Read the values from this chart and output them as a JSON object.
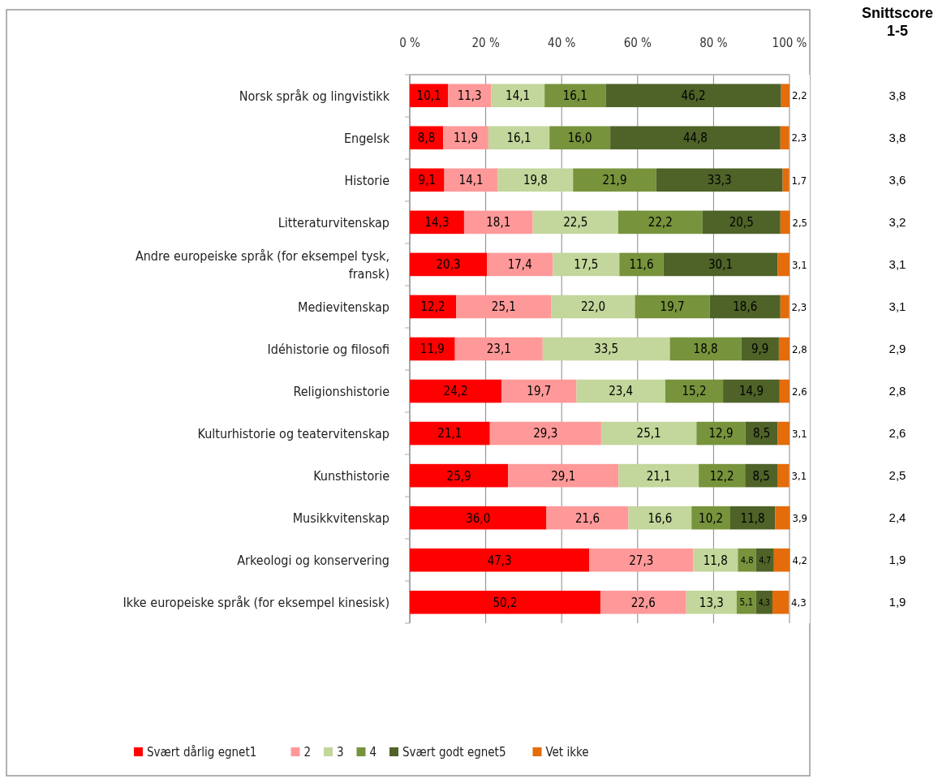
{
  "chart_data": [
    {
      "type": "bar",
      "orientation": "horizontal",
      "stacked": true,
      "grid": "x",
      "legend": "bottom",
      "categories": [
        "Norsk språk og lingvistikk",
        "Engelsk",
        "Historie",
        "Litteraturvitenskap",
        "Andre europeiske språk (for eksempel tysk, fransk)",
        "Medievitenskap",
        "Idéhistorie og filosofi",
        "Religionshistorie",
        "Kulturhistorie og teatervitenskap",
        "Kunsthistorie",
        "Musikkvitenskap",
        "Arkeologi og konservering",
        "Ikke europeiske språk (for eksempel kinesisk)"
      ],
      "xlim": [
        0,
        100
      ],
      "xticks": [
        {
          "value": 0,
          "label": "0 %"
        },
        {
          "value": 20,
          "label": "20 %"
        },
        {
          "value": 40,
          "label": "40 %"
        },
        {
          "value": 60,
          "label": "60 %"
        },
        {
          "value": 80,
          "label": "80 %"
        },
        {
          "value": 100,
          "label": "100 %"
        }
      ],
      "series": [
        {
          "name": "Svært dårlig egnet1",
          "color": "#ff0000",
          "values": [
            10.1,
            8.8,
            9.1,
            14.3,
            20.3,
            12.2,
            11.9,
            24.2,
            21.1,
            25.9,
            36.0,
            47.3,
            50.2
          ],
          "value_labels": [
            "10,1",
            "8,8",
            "9,1",
            "14,3",
            "20,3",
            "12,2",
            "11,9",
            "24,2",
            "21,1",
            "25,9",
            "36,0",
            "47,3",
            "50,2"
          ]
        },
        {
          "name": "2",
          "color": "#ff9999",
          "values": [
            11.3,
            11.9,
            14.1,
            18.1,
            17.4,
            25.1,
            23.1,
            19.7,
            29.3,
            29.1,
            21.6,
            27.3,
            22.6
          ],
          "value_labels": [
            "11,3",
            "11,9",
            "14,1",
            "18,1",
            "17,4",
            "25,1",
            "23,1",
            "19,7",
            "29,3",
            "29,1",
            "21,6",
            "27,3",
            "22,6"
          ]
        },
        {
          "name": "3",
          "color": "#c3d69b",
          "values": [
            14.1,
            16.1,
            19.8,
            22.5,
            17.5,
            22.0,
            33.5,
            23.4,
            25.1,
            21.1,
            16.6,
            11.8,
            13.3
          ],
          "value_labels": [
            "14,1",
            "16,1",
            "19,8",
            "22,5",
            "17,5",
            "22,0",
            "33,5",
            "23,4",
            "25,1",
            "21,1",
            "16,6",
            "11,8",
            "13,3"
          ]
        },
        {
          "name": "4",
          "color": "#77933c",
          "values": [
            16.1,
            16.0,
            21.9,
            22.2,
            11.6,
            19.7,
            18.8,
            15.2,
            12.9,
            12.2,
            10.2,
            4.8,
            5.1
          ],
          "value_labels": [
            "16,1",
            "16,0",
            "21,9",
            "22,2",
            "11,6",
            "19,7",
            "18,8",
            "15,2",
            "12,9",
            "12,2",
            "10,2",
            "4,8",
            "5,1"
          ]
        },
        {
          "name": "Svært godt egnet5",
          "color": "#4f6228",
          "values": [
            46.2,
            44.8,
            33.3,
            20.5,
            30.1,
            18.6,
            9.9,
            14.9,
            8.5,
            8.5,
            11.8,
            4.7,
            4.3
          ],
          "value_labels": [
            "46,2",
            "44,8",
            "33,3",
            "20,5",
            "30,1",
            "18,6",
            "9,9",
            "14,9",
            "8,5",
            "8,5",
            "11,8",
            "4,7",
            "4,3"
          ]
        },
        {
          "name": "Vet ikke",
          "color": "#e46c0a",
          "values": [
            2.2,
            2.3,
            1.7,
            2.5,
            3.1,
            2.3,
            2.8,
            2.6,
            3.1,
            3.1,
            3.9,
            4.2,
            4.3
          ],
          "value_labels": [
            "2,2",
            "2,3",
            "1,7",
            "2,5",
            "3,1",
            "2,3",
            "2,8",
            "2,6",
            "3,1",
            "3,1",
            "3,9",
            "4,2",
            "4,3"
          ]
        }
      ]
    },
    {
      "type": "other",
      "title": "Snittscore 1-5",
      "annotations": [
        "3,8",
        "3,8",
        "3,6",
        "3,2",
        "3,1",
        "3,1",
        "2,9",
        "2,8",
        "2,6",
        "2,5",
        "2,4",
        "1,9",
        "1,9"
      ]
    }
  ]
}
